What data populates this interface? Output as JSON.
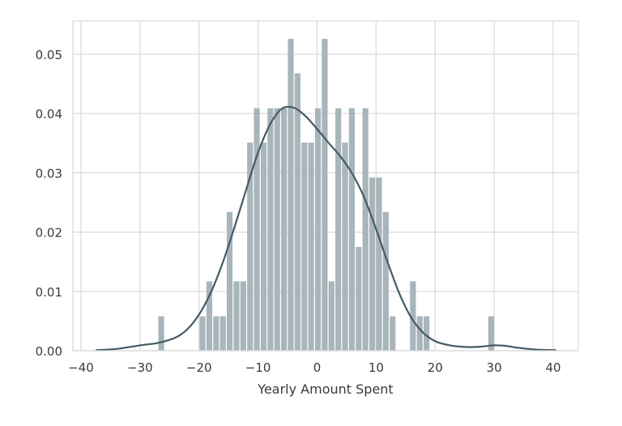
{
  "chart_data": {
    "type": "bar",
    "subtype": "histogram_with_kde",
    "title": "",
    "xlabel": "Yearly Amount Spent",
    "ylabel": "",
    "xlim": [
      -42,
      43
    ],
    "ylim": [
      0,
      0.0555
    ],
    "xticks": [
      -40,
      -30,
      -20,
      -10,
      0,
      10,
      20,
      30,
      40
    ],
    "xtick_labels": [
      "−40",
      "−30",
      "−20",
      "−10",
      "0",
      "10",
      "20",
      "30",
      "40"
    ],
    "yticks": [
      0.0,
      0.01,
      0.02,
      0.03,
      0.04,
      0.05
    ],
    "ytick_labels": [
      "0.00",
      "0.01",
      "0.02",
      "0.03",
      "0.04",
      "0.05"
    ],
    "grid": true,
    "legend": null,
    "bin_width": 1.15,
    "bars": {
      "left_edges": [
        -26.9,
        -19.9,
        -18.75,
        -17.6,
        -16.45,
        -15.3,
        -14.15,
        -13.0,
        -11.85,
        -10.7,
        -9.55,
        -8.4,
        -7.25,
        -6.1,
        -4.95,
        -3.8,
        -2.65,
        -1.5,
        -0.35,
        0.8,
        1.95,
        3.1,
        4.25,
        5.4,
        6.55,
        7.7,
        8.85,
        10.0,
        11.15,
        12.3,
        15.75,
        16.9,
        18.05,
        29.0
      ],
      "heights": [
        0.0058,
        0.0058,
        0.0117,
        0.0058,
        0.0058,
        0.0234,
        0.0117,
        0.0117,
        0.0351,
        0.0409,
        0.0351,
        0.0409,
        0.0409,
        0.0409,
        0.0526,
        0.0468,
        0.0351,
        0.0351,
        0.0409,
        0.0526,
        0.0117,
        0.0409,
        0.0351,
        0.0409,
        0.0175,
        0.0409,
        0.0292,
        0.0292,
        0.0234,
        0.0058,
        0.0117,
        0.0058,
        0.0058,
        0.0058
      ]
    },
    "kde": {
      "x": [
        -37.5,
        -34,
        -30,
        -27,
        -24,
        -22,
        -20,
        -18,
        -16,
        -14,
        -12,
        -10,
        -8,
        -6,
        -4,
        -2,
        0,
        2,
        4,
        6,
        8,
        10,
        12,
        14,
        16,
        18,
        20,
        22,
        24,
        26,
        28,
        30,
        32,
        34,
        37,
        40.5
      ],
      "y": [
        0.0001,
        0.0003,
        0.0009,
        0.0013,
        0.0022,
        0.0036,
        0.0061,
        0.0098,
        0.0148,
        0.0208,
        0.0272,
        0.0334,
        0.0381,
        0.0408,
        0.041,
        0.0396,
        0.0374,
        0.035,
        0.0327,
        0.0298,
        0.0258,
        0.0205,
        0.0148,
        0.0095,
        0.0055,
        0.003,
        0.0016,
        0.001,
        0.0007,
        0.0006,
        0.0007,
        0.0009,
        0.0008,
        0.0005,
        0.0002,
        0.0001
      ]
    },
    "colors": {
      "bar_fill": "#a8b5bb",
      "kde_line": "#455a64",
      "grid": "#d9d9d9",
      "frame": "#d9d9d9"
    }
  }
}
